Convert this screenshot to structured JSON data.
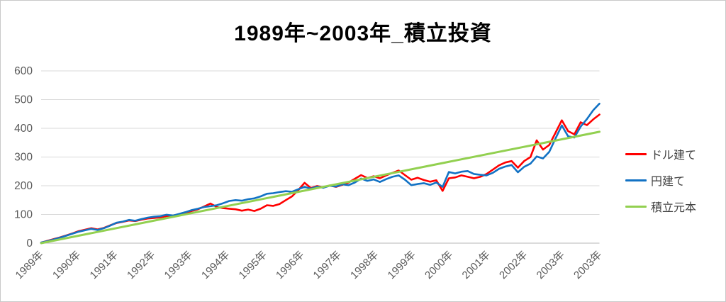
{
  "chart_data": {
    "type": "line",
    "title": "1989年~2003年_積立投資",
    "ylim": [
      0,
      600
    ],
    "y_ticks": [
      0,
      100,
      200,
      300,
      400,
      500,
      600
    ],
    "x_tick_labels": [
      "1989年",
      "1990年",
      "1991年",
      "1992年",
      "1993年",
      "1994年",
      "1995年",
      "1996年",
      "1997年",
      "1998年",
      "1999年",
      "2000年",
      "2001年",
      "2002年",
      "2003年",
      "2003年"
    ],
    "grid": "horizontal",
    "legend_position": "right",
    "colors": {
      "grid": "#d9d9d9",
      "baseline": "#b7b7b7",
      "axis_text": "#595959",
      "title_text": "#000000",
      "frame_border": "#c9c9c9"
    },
    "series": [
      {
        "name": "ドル建て",
        "color": "#ff0000",
        "width": 2.6,
        "values": [
          2,
          8,
          14,
          20,
          27,
          34,
          42,
          47,
          52,
          48,
          53,
          62,
          70,
          74,
          79,
          77,
          82,
          86,
          88,
          90,
          94,
          92,
          97,
          104,
          112,
          118,
          128,
          138,
          126,
          122,
          120,
          118,
          113,
          117,
          112,
          120,
          132,
          130,
          136,
          150,
          163,
          185,
          210,
          192,
          199,
          194,
          201,
          196,
          203,
          211,
          224,
          237,
          227,
          233,
          226,
          236,
          245,
          253,
          237,
          221,
          228,
          220,
          214,
          219,
          182,
          226,
          229,
          236,
          231,
          226,
          231,
          241,
          256,
          271,
          281,
          286,
          263,
          286,
          300,
          358,
          326,
          342,
          385,
          428,
          390,
          379,
          421,
          411,
          431,
          448
        ]
      },
      {
        "name": "円建て",
        "color": "#1272c4",
        "width": 2.6,
        "values": [
          2,
          7,
          13,
          19,
          26,
          33,
          40,
          45,
          50,
          46,
          52,
          61,
          71,
          75,
          81,
          78,
          84,
          89,
          92,
          94,
          99,
          96,
          102,
          108,
          115,
          120,
          126,
          129,
          132,
          139,
          147,
          150,
          148,
          153,
          156,
          163,
          172,
          174,
          178,
          181,
          179,
          188,
          196,
          190,
          197,
          193,
          200,
          197,
          205,
          202,
          211,
          225,
          217,
          222,
          213,
          223,
          231,
          236,
          221,
          202,
          206,
          209,
          203,
          211,
          196,
          248,
          243,
          249,
          251,
          241,
          238,
          236,
          245,
          259,
          267,
          272,
          247,
          266,
          277,
          302,
          295,
          318,
          365,
          410,
          372,
          368,
          406,
          432,
          463,
          486
        ]
      },
      {
        "name": "積立元本",
        "color": "#92d050",
        "width": 3,
        "values": [
          0,
          388
        ]
      }
    ]
  }
}
